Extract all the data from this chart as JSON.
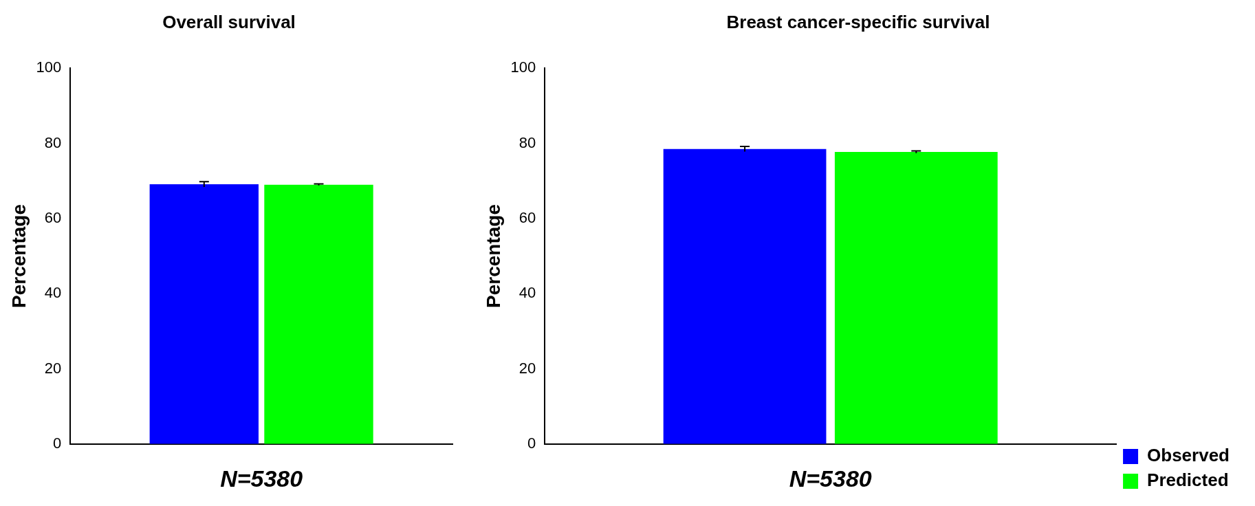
{
  "chart_data": [
    {
      "type": "bar",
      "title": "Overall survival",
      "xlabel": "N=5380",
      "ylabel": "Percentage",
      "categories": [
        null
      ],
      "series": [
        {
          "color": "#0000ff",
          "values": [
            69.1
          ],
          "errors": [
            0.7
          ]
        },
        {
          "color": "#00ff00",
          "values": [
            69.0
          ],
          "errors": [
            0.2
          ]
        }
      ],
      "ylim": [
        0,
        100
      ],
      "yticks": [
        0,
        20,
        40,
        60,
        80,
        100
      ],
      "grid": false,
      "legend": false
    },
    {
      "type": "bar",
      "title": "Breast cancer-specific survival",
      "xlabel": "N=5380",
      "ylabel": "Percentage",
      "categories": [
        null
      ],
      "series": [
        {
          "name": "Observed",
          "color": "#0000ff",
          "values": [
            78.5
          ],
          "errors": [
            0.7
          ]
        },
        {
          "name": "Predicted",
          "color": "#00ff00",
          "values": [
            77.7
          ],
          "errors": [
            0.3
          ]
        }
      ],
      "ylim": [
        0,
        100
      ],
      "yticks": [
        0,
        20,
        40,
        60,
        80,
        100
      ],
      "grid": false,
      "legend": "bottom right"
    }
  ]
}
